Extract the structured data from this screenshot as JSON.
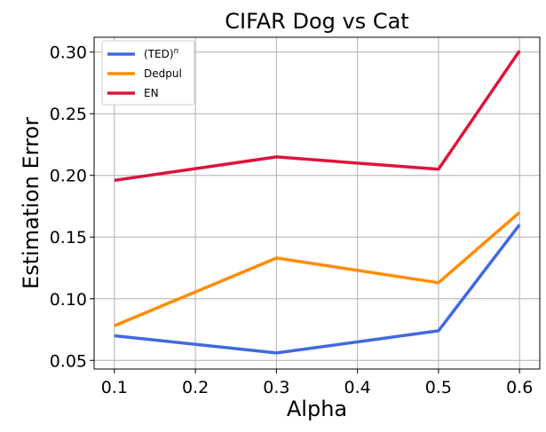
{
  "chart_data": {
    "type": "line",
    "title": "CIFAR Dog vs Cat",
    "xlabel": "Alpha",
    "ylabel": "Estimation Error",
    "x": [
      0.1,
      0.3,
      0.5,
      0.6
    ],
    "xlim": [
      0.075,
      0.625
    ],
    "ylim": [
      0.043,
      0.312
    ],
    "xticks": [
      0.1,
      0.2,
      0.3,
      0.4,
      0.5,
      0.6
    ],
    "xtick_labels": [
      "0.1",
      "0.2",
      "0.3",
      "0.4",
      "0.5",
      "0.6"
    ],
    "yticks": [
      0.05,
      0.1,
      0.15,
      0.2,
      0.25,
      0.3
    ],
    "ytick_labels": [
      "0.05",
      "0.10",
      "0.15",
      "0.20",
      "0.25",
      "0.30"
    ],
    "grid": true,
    "legend_position": "top-left",
    "series": [
      {
        "name": "(TED)",
        "superscript": "n",
        "color": "#4169E1",
        "values": [
          0.07,
          0.056,
          0.074,
          0.16
        ]
      },
      {
        "name": "Dedpul",
        "superscript": "",
        "color": "#FF8C00",
        "values": [
          0.078,
          0.133,
          0.113,
          0.17
        ]
      },
      {
        "name": "EN",
        "superscript": "",
        "color": "#DC143C",
        "values": [
          0.196,
          0.215,
          0.205,
          0.301
        ]
      }
    ]
  }
}
